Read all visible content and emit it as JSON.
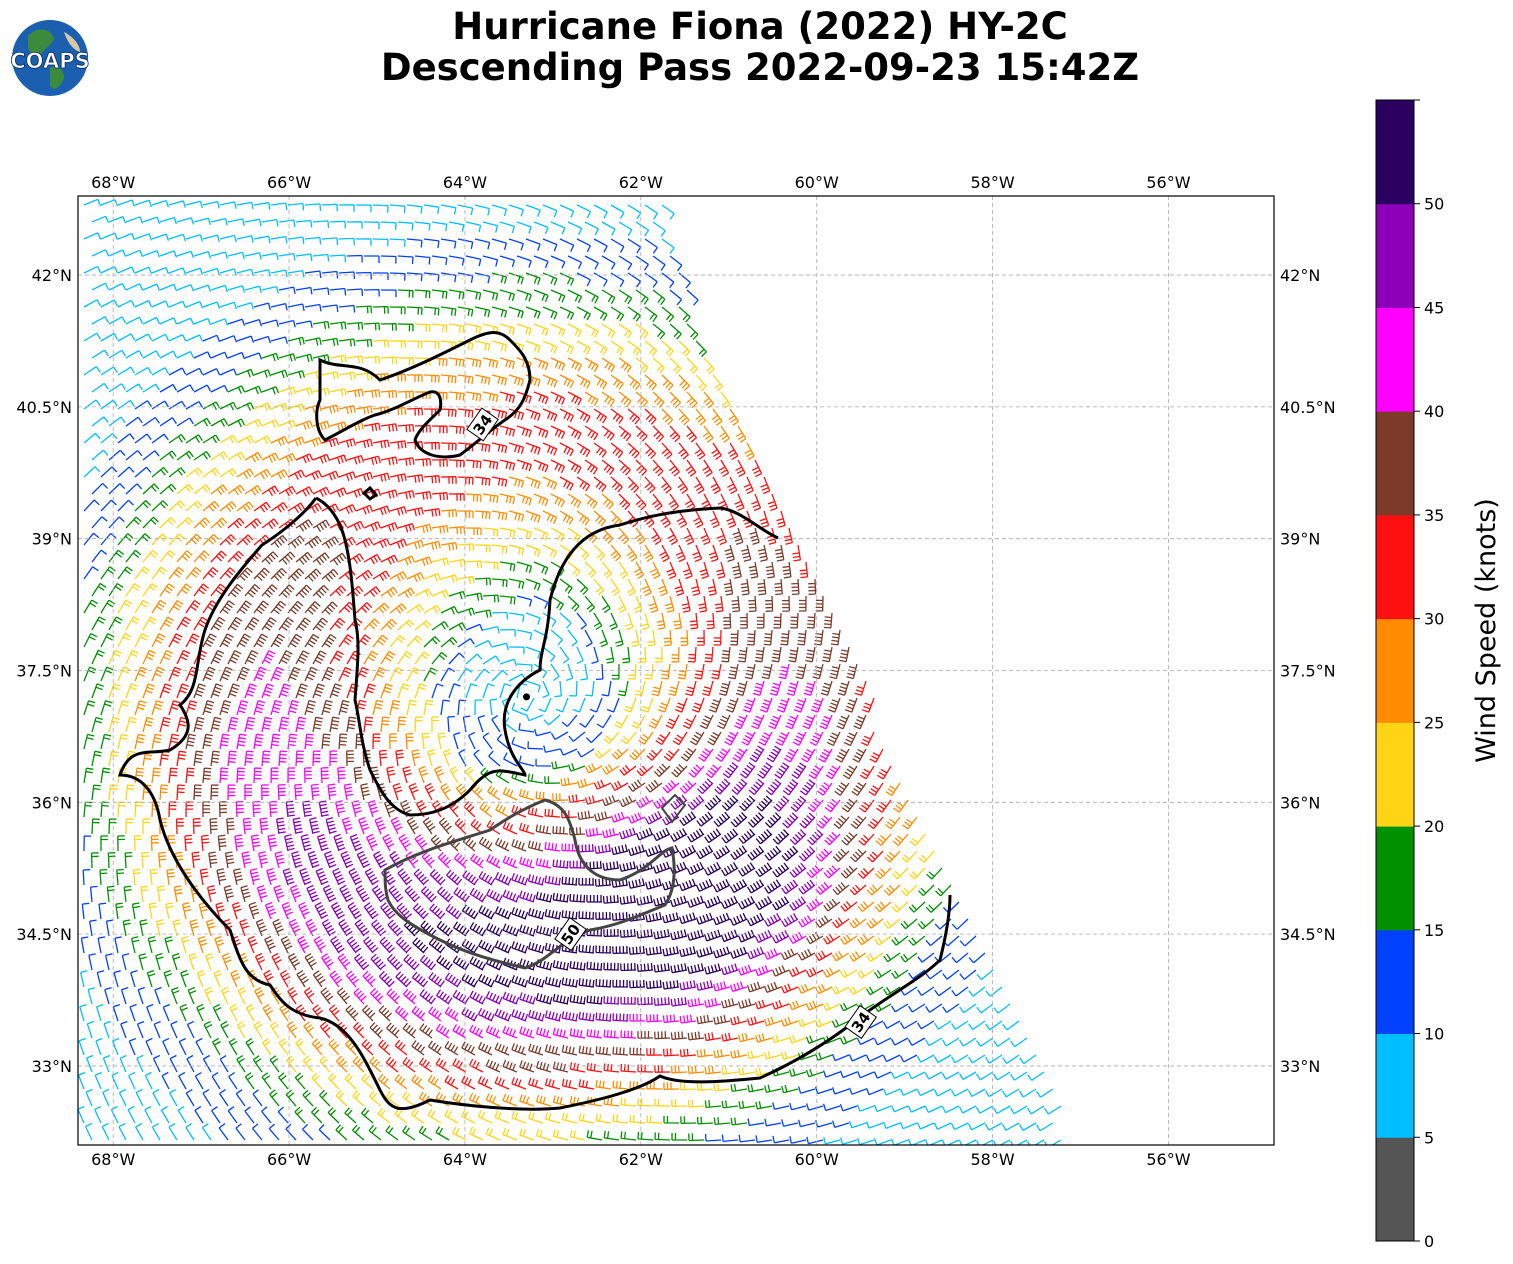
{
  "title": {
    "line1": "Hurricane Fiona (2022) HY-2C",
    "line2": "Descending Pass 2022-09-23 15:42Z"
  },
  "logo": {
    "text": "COAPS",
    "icon": "globe-logo-icon"
  },
  "map": {
    "lon_range": [
      -68.4,
      -54.8
    ],
    "lat_range": [
      32.1,
      42.9
    ],
    "lon_ticks": [
      {
        "value": -68,
        "label": "68°W"
      },
      {
        "value": -66,
        "label": "66°W"
      },
      {
        "value": -64,
        "label": "64°W"
      },
      {
        "value": -62,
        "label": "62°W"
      },
      {
        "value": -60,
        "label": "60°W"
      },
      {
        "value": -58,
        "label": "58°W"
      },
      {
        "value": -56,
        "label": "56°W"
      }
    ],
    "lat_ticks": [
      {
        "value": 42,
        "label": "42°N"
      },
      {
        "value": 40.5,
        "label": "40.5°N"
      },
      {
        "value": 39,
        "label": "39°N"
      },
      {
        "value": 37.5,
        "label": "37.5°N"
      },
      {
        "value": 36,
        "label": "36°N"
      },
      {
        "value": 34.5,
        "label": "34.5°N"
      },
      {
        "value": 33,
        "label": "33°N"
      }
    ],
    "gridlines": true,
    "storm_center": {
      "lon": -63.3,
      "lat": 37.2
    },
    "contour_labels": [
      {
        "text": "34",
        "lon": -63.8,
        "lat": 40.3
      },
      {
        "text": "50",
        "lon": -62.8,
        "lat": 34.5
      },
      {
        "text": "34",
        "lon": -59.5,
        "lat": 33.5
      }
    ]
  },
  "colorbar": {
    "label": "Wind Speed (knots)",
    "ticks": [
      "0",
      "5",
      "10",
      "15",
      "20",
      "25",
      "30",
      "35",
      "40",
      "45",
      "50"
    ],
    "colors": [
      "#555555",
      "#00bfff",
      "#0040ff",
      "#009000",
      "#ffd414",
      "#ff8c00",
      "#ff1010",
      "#7b3b28",
      "#ff00ff",
      "#8b00b8",
      "#2a0060"
    ]
  },
  "colors": {
    "contour34": "#000000",
    "contour50": "#444444",
    "gridline": "#aaaaaa"
  }
}
